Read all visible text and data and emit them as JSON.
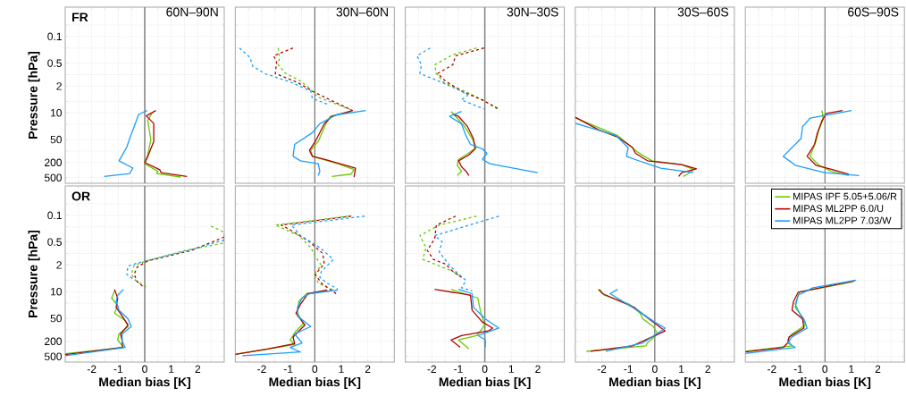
{
  "chart_data": [
    {
      "type": "line",
      "title": "60N–90N",
      "annotations": [
        "FR"
      ],
      "ylabel": "Pressure [hPa]",
      "tick_labels": "y",
      "xlim": [
        -3,
        3
      ],
      "ylim": [
        700,
        0.017
      ],
      "log": "y",
      "grid": true,
      "xticks": [
        {
          "value": -2.5,
          "label": null
        },
        -2,
        {
          "value": -1.5,
          "label": null
        },
        -1,
        {
          "value": -0.5,
          "label": null
        },
        0,
        {
          "value": 0.5,
          "label": null
        },
        1,
        {
          "value": 1.5,
          "label": null
        },
        2,
        {
          "value": 2.5,
          "label": null
        }
      ],
      "yticks": [
        {
          "value": 0.05,
          "label": null
        },
        0.1,
        {
          "value": 0.2,
          "label": null
        },
        0.5,
        {
          "value": 1,
          "label": null
        },
        2,
        {
          "value": 5,
          "label": null
        },
        10,
        {
          "value": 20,
          "label": null
        },
        50,
        {
          "value": 100,
          "label": null
        },
        200,
        500
      ],
      "ref_lines": [
        {
          "axis": "x",
          "value": 0,
          "color": "#808080"
        }
      ],
      "series": [
        {
          "color": "#66cc00",
          "line_style": "solid",
          "x": [
            0.28,
            0.11,
            0.23,
            0.1,
            0.0,
            0.5,
            0.45,
            1.36
          ],
          "values": [
            10,
            16,
            50,
            140,
            215,
            340,
            390,
            480
          ]
        },
        {
          "color": "#b30000",
          "line_style": "solid",
          "x": [
            0.42,
            0.06,
            0.34,
            0.34,
            0.11,
            0.0,
            0.57,
            0.62,
            1.59
          ],
          "values": [
            8.7,
            12,
            19,
            56,
            140,
            200,
            310,
            370,
            465
          ]
        },
        {
          "color": "#1a9eff",
          "line_style": "solid",
          "x": [
            0.09,
            -0.23,
            -0.4,
            -0.57,
            -0.68,
            -0.97,
            -0.45,
            -0.57,
            -1.53
          ],
          "values": [
            8.7,
            11,
            23,
            47,
            80,
            180,
            280,
            390,
            465
          ]
        }
      ]
    },
    {
      "type": "line",
      "title": "30N–60N",
      "tick_labels": false,
      "xlim": [
        -3,
        3
      ],
      "ylim": [
        700,
        0.017
      ],
      "log": "y",
      "grid": true,
      "xticks": [
        {
          "value": -2.5,
          "label": null
        },
        -2,
        {
          "value": -1.5,
          "label": null
        },
        -1,
        {
          "value": -0.5,
          "label": null
        },
        0,
        {
          "value": 0.5,
          "label": null
        },
        1,
        {
          "value": 1.5,
          "label": null
        },
        2,
        {
          "value": 2.5,
          "label": null
        }
      ],
      "yticks": [
        {
          "value": 0.05,
          "label": null
        },
        0.1,
        {
          "value": 0.2,
          "label": null
        },
        0.5,
        {
          "value": 1,
          "label": null
        },
        2,
        {
          "value": 5,
          "label": null
        },
        10,
        {
          "value": 20,
          "label": null
        },
        50,
        {
          "value": 100,
          "label": null
        },
        200,
        500
      ],
      "ref_lines": [
        {
          "axis": "x",
          "value": 0,
          "color": "#808080"
        }
      ],
      "series": [
        {
          "color": "#66cc00",
          "line_style": "dashed",
          "x": [
            -1.38,
            -1.33,
            -1.38,
            -1.1,
            -0.54,
            -0.2,
            0.13,
            0.87,
            1.43
          ],
          "values": [
            0.2,
            0.35,
            0.55,
            0.93,
            1.46,
            2.27,
            3.9,
            6.1,
            8.7
          ]
        },
        {
          "color": "#b30000",
          "line_style": "dashed",
          "x": [
            -0.82,
            -1.55,
            -1.44,
            -1.49,
            -0.65,
            -0.09,
            0.58,
            1.43
          ],
          "values": [
            0.2,
            0.32,
            0.46,
            0.93,
            1.6,
            2.7,
            4.6,
            8.7
          ]
        },
        {
          "color": "#1a9eff",
          "line_style": "dashed",
          "x": [
            -2.84,
            -2.45,
            -2.34,
            -1.89,
            -0.88,
            -0.15,
            -0.09,
            0.53
          ],
          "values": [
            0.2,
            0.35,
            0.6,
            0.93,
            1.6,
            2.7,
            4.2,
            6.1
          ]
        },
        {
          "color": "#66cc00",
          "line_style": "solid",
          "x": [
            1.37,
            0.58,
            0.42,
            0.13,
            -0.15,
            -0.09,
            0.87,
            1.48,
            1.37,
            0.64
          ],
          "values": [
            9.2,
            12.4,
            19.3,
            56,
            96,
            138,
            215,
            307,
            403,
            465
          ]
        },
        {
          "color": "#b30000",
          "line_style": "solid",
          "x": [
            1.43,
            0.64,
            0.36,
            0.02,
            -0.2,
            -0.09,
            0.36,
            1.54,
            1.48
          ],
          "values": [
            8.7,
            12.4,
            19.3,
            56,
            96,
            138,
            165,
            281,
            483
          ]
        },
        {
          "color": "#1a9eff",
          "line_style": "solid",
          "x": [
            1.93,
            0.81,
            0.19,
            -0.09,
            -0.76,
            -0.82,
            -0.54,
            0.13,
            0.19,
            0.13
          ],
          "values": [
            8.7,
            11.3,
            19.3,
            33,
            67,
            138,
            180,
            215,
            337,
            440
          ]
        }
      ]
    },
    {
      "type": "line",
      "title": "30N–30S",
      "tick_labels": false,
      "xlim": [
        -3,
        3
      ],
      "ylim": [
        700,
        0.017
      ],
      "log": "y",
      "grid": true,
      "xticks": [
        {
          "value": -2.5,
          "label": null
        },
        -2,
        {
          "value": -1.5,
          "label": null
        },
        -1,
        {
          "value": -0.5,
          "label": null
        },
        0,
        {
          "value": 0.5,
          "label": null
        },
        1,
        {
          "value": 1.5,
          "label": null
        },
        2,
        {
          "value": 2.5,
          "label": null
        }
      ],
      "yticks": [
        {
          "value": 0.05,
          "label": null
        },
        0.1,
        {
          "value": 0.2,
          "label": null
        },
        0.5,
        {
          "value": 1,
          "label": null
        },
        2,
        {
          "value": 5,
          "label": null
        },
        10,
        {
          "value": 20,
          "label": null
        },
        50,
        {
          "value": 100,
          "label": null
        },
        200,
        500
      ],
      "ref_lines": [
        {
          "axis": "x",
          "value": 0,
          "color": "#808080"
        }
      ],
      "series": [
        {
          "color": "#66cc00",
          "line_style": "dashed",
          "x": [
            -0.31,
            -1.21,
            -1.89,
            -1.83,
            -1.55,
            -0.76,
            -0.09,
            0.47
          ],
          "values": [
            0.2,
            0.3,
            0.55,
            0.93,
            1.6,
            2.7,
            4.6,
            7.9
          ]
        },
        {
          "color": "#b30000",
          "line_style": "dashed",
          "x": [
            -0.03,
            -1.1,
            -1.21,
            -1.78,
            -1.49,
            -0.88,
            -0.09,
            0.53
          ],
          "values": [
            0.2,
            0.32,
            0.55,
            0.93,
            1.46,
            2.7,
            4.6,
            7.9
          ]
        },
        {
          "color": "#1a9eff",
          "line_style": "dashed",
          "x": [
            -2.06,
            -2.56,
            -2.39,
            -2.45,
            -1.61,
            -0.88,
            -0.65,
            -0.88,
            -0.03
          ],
          "values": [
            0.2,
            0.32,
            0.55,
            0.93,
            1.6,
            2.7,
            3.5,
            4.6,
            7.9
          ]
        },
        {
          "color": "#66cc00",
          "line_style": "solid",
          "x": [
            -1.27,
            -1.1,
            -0.76,
            -0.48,
            -0.31,
            -0.71,
            -0.99,
            -1.04,
            -0.88,
            -1.04
          ],
          "values": [
            9.2,
            12.4,
            23,
            47,
            81,
            126,
            165,
            235,
            337,
            440
          ]
        },
        {
          "color": "#b30000",
          "line_style": "solid",
          "x": [
            -1.21,
            -0.99,
            -0.65,
            -0.43,
            -0.37,
            -0.6,
            -0.99,
            -0.88,
            -0.71,
            -0.6
          ],
          "values": [
            10.9,
            12.4,
            23,
            47,
            88,
            126,
            180,
            258,
            337,
            440
          ]
        },
        {
          "color": "#1a9eff",
          "line_style": "solid",
          "x": [
            -0.88,
            -1.33,
            -0.88,
            -0.71,
            -0.54,
            -0.09,
            0.08,
            -0.09,
            0.19,
            1.99
          ],
          "values": [
            9.2,
            12.4,
            19.3,
            39.5,
            67,
            88,
            115,
            165,
            215,
            368
          ]
        }
      ]
    },
    {
      "type": "line",
      "title": "30S–60S",
      "tick_labels": false,
      "xlim": [
        -3,
        3
      ],
      "ylim": [
        700,
        0.017
      ],
      "log": "y",
      "grid": true,
      "xticks": [
        {
          "value": -2.5,
          "label": null
        },
        -2,
        {
          "value": -1.5,
          "label": null
        },
        -1,
        {
          "value": -0.5,
          "label": null
        },
        0,
        {
          "value": 0.5,
          "label": null
        },
        1,
        {
          "value": 1.5,
          "label": null
        },
        2,
        {
          "value": 2.5,
          "label": null
        }
      ],
      "yticks": [
        {
          "value": 0.05,
          "label": null
        },
        0.1,
        {
          "value": 0.2,
          "label": null
        },
        0.5,
        {
          "value": 1,
          "label": null
        },
        2,
        {
          "value": 5,
          "label": null
        },
        10,
        {
          "value": 20,
          "label": null
        },
        50,
        {
          "value": 100,
          "label": null
        },
        200,
        500
      ],
      "ref_lines": [
        {
          "axis": "x",
          "value": 0,
          "color": "#808080"
        }
      ],
      "series": [
        {
          "color": "#66cc00",
          "line_style": "solid",
          "x": [
            -3.0,
            -1.4,
            -0.67,
            -0.11,
            1.01,
            1.46,
            1.24,
            1.07
          ],
          "values": [
            13.5,
            39.5,
            105,
            180,
            227,
            307,
            403,
            465
          ]
        },
        {
          "color": "#b30000",
          "line_style": "solid",
          "x": [
            -3.0,
            -2.13,
            -1.4,
            -0.84,
            -0.73,
            -0.28,
            1.01,
            1.57,
            1.01,
            0.9
          ],
          "values": [
            13,
            27.7,
            43,
            81,
            115,
            180,
            227,
            292,
            368,
            465
          ]
        },
        {
          "color": "#1a9eff",
          "line_style": "solid",
          "x": [
            -3.0,
            -1.46,
            -1.01,
            -1.07,
            -0.45,
            0.22,
            1.46
          ],
          "values": [
            18.7,
            39.5,
            81,
            138,
            197,
            281,
            368
          ]
        }
      ]
    },
    {
      "type": "line",
      "title": "60S–90S",
      "tick_labels": false,
      "xlim": [
        -3,
        3
      ],
      "ylim": [
        700,
        0.017
      ],
      "log": "y",
      "grid": true,
      "xticks": [
        {
          "value": -2.5,
          "label": null
        },
        -2,
        {
          "value": -1.5,
          "label": null
        },
        -1,
        {
          "value": -0.5,
          "label": null
        },
        0,
        {
          "value": 0.5,
          "label": null
        },
        1,
        {
          "value": 1.5,
          "label": null
        },
        2,
        {
          "value": 2.5,
          "label": null
        }
      ],
      "yticks": [
        {
          "value": 0.05,
          "label": null
        },
        0.1,
        {
          "value": 0.2,
          "label": null
        },
        0.5,
        {
          "value": 1,
          "label": null
        },
        2,
        {
          "value": 5,
          "label": null
        },
        10,
        {
          "value": 20,
          "label": null
        },
        50,
        {
          "value": 100,
          "label": null
        },
        200,
        500
      ],
      "ref_lines": [
        {
          "axis": "x",
          "value": 0,
          "color": "#808080"
        }
      ],
      "series": [
        {
          "color": "#66cc00",
          "line_style": "solid",
          "x": [
            -0.11,
            -0.06,
            -0.22,
            -0.34,
            -0.56,
            -0.22,
            0.22,
            0.9
          ],
          "values": [
            8.7,
            14.6,
            27.7,
            56,
            138,
            235,
            337,
            440
          ]
        },
        {
          "color": "#b30000",
          "line_style": "solid",
          "x": [
            0.67,
            0.06,
            -0.11,
            -0.28,
            -0.39,
            -0.67,
            -0.34,
            0.28,
            0.9
          ],
          "values": [
            8.7,
            10.3,
            16,
            33,
            67,
            138,
            235,
            307,
            403
          ]
        },
        {
          "color": "#1a9eff",
          "line_style": "solid",
          "x": [
            1.01,
            -0.56,
            -0.84,
            -0.9,
            -1.57,
            -1.12,
            0.0,
            1.29
          ],
          "values": [
            8.7,
            13.8,
            23,
            47,
            138,
            235,
            368,
            440
          ]
        }
      ]
    },
    {
      "type": "line",
      "annotations": [
        "OR"
      ],
      "ylabel": "Pressure [hPa]",
      "xlabel": "Median bias [K]",
      "xlim": [
        -3,
        3
      ],
      "ylim": [
        700,
        0.017
      ],
      "log": "y",
      "grid": true,
      "xticks": [
        {
          "value": -2.5,
          "label": null
        },
        -2,
        {
          "value": -1.5,
          "label": null
        },
        -1,
        {
          "value": -0.5,
          "label": null
        },
        0,
        {
          "value": 0.5,
          "label": null
        },
        1,
        {
          "value": 1.5,
          "label": null
        },
        2,
        {
          "value": 2.5,
          "label": null
        }
      ],
      "yticks": [
        {
          "value": 0.05,
          "label": null
        },
        0.1,
        {
          "value": 0.2,
          "label": null
        },
        0.5,
        {
          "value": 1,
          "label": null
        },
        2,
        {
          "value": 5,
          "label": null
        },
        10,
        {
          "value": 20,
          "label": null
        },
        50,
        {
          "value": 100,
          "label": null
        },
        200,
        500
      ],
      "ref_lines": [
        {
          "axis": "x",
          "value": 0,
          "color": "#808080"
        }
      ],
      "series": [
        {
          "color": "#66cc00",
          "line_style": "dashed",
          "x": [
            2.5,
            3.0,
            3.0,
            1.53,
            0.06,
            -0.4,
            -0.51,
            -0.34,
            0.11
          ],
          "values": [
            0.19,
            0.28,
            0.53,
            0.83,
            1.57,
            2.05,
            3.5,
            5.1,
            7.9
          ]
        },
        {
          "color": "#b30000",
          "line_style": "dashed",
          "x": [
            3.0,
            1.76,
            0.11,
            -0.28,
            -0.4,
            -0.28,
            0.0
          ],
          "values": [
            0.37,
            0.83,
            1.57,
            2.25,
            3.5,
            5.5,
            7.9
          ]
        },
        {
          "color": "#1a9eff",
          "line_style": "dashed",
          "x": [
            3.0,
            1.65,
            -0.17,
            -0.63,
            -0.68,
            -0.45,
            -0.34
          ],
          "values": [
            0.44,
            0.83,
            1.7,
            2.13,
            3.5,
            4.6,
            5.1
          ]
        },
        {
          "color": "#66cc00",
          "line_style": "solid",
          "x": [
            -1.14,
            -1.25,
            -1.02,
            -1.14,
            -0.74,
            -0.63,
            -0.97,
            -1.02,
            -0.8,
            -3.0
          ],
          "values": [
            9.5,
            14.8,
            23.3,
            36.5,
            57,
            82,
            128,
            184,
            288,
            420
          ]
        },
        {
          "color": "#b30000",
          "line_style": "solid",
          "x": [
            -1.14,
            -1.02,
            -1.08,
            -0.85,
            -0.63,
            -0.91,
            -0.85,
            -0.85,
            -3.0
          ],
          "values": [
            8.7,
            14.8,
            25.5,
            43.7,
            75,
            128,
            201,
            288,
            445
          ]
        },
        {
          "color": "#1a9eff",
          "line_style": "solid",
          "x": [
            -0.8,
            -1.02,
            -1.08,
            -0.97,
            -0.63,
            -0.51,
            -0.85,
            -0.85,
            -0.74,
            -3.0
          ],
          "values": [
            8.7,
            12.4,
            17.8,
            30.5,
            52,
            82,
            128,
            201,
            288,
            475
          ]
        }
      ]
    },
    {
      "type": "line",
      "xlabel": "Median bias [K]",
      "tick_labels": "x",
      "xlim": [
        -3,
        3
      ],
      "ylim": [
        700,
        0.017
      ],
      "log": "y",
      "grid": true,
      "xticks": [
        {
          "value": -2.5,
          "label": null
        },
        -2,
        {
          "value": -1.5,
          "label": null
        },
        -1,
        {
          "value": -0.5,
          "label": null
        },
        0,
        {
          "value": 0.5,
          "label": null
        },
        1,
        {
          "value": 1.5,
          "label": null
        },
        2,
        {
          "value": 2.5,
          "label": null
        }
      ],
      "yticks": [
        {
          "value": 0.05,
          "label": null
        },
        0.1,
        {
          "value": 0.2,
          "label": null
        },
        0.5,
        {
          "value": 1,
          "label": null
        },
        2,
        {
          "value": 5,
          "label": null
        },
        10,
        {
          "value": 20,
          "label": null
        },
        50,
        {
          "value": 100,
          "label": null
        },
        200,
        500
      ],
      "ref_lines": [
        {
          "axis": "x",
          "value": 0,
          "color": "#808080"
        }
      ],
      "series": [
        {
          "color": "#66cc00",
          "line_style": "dashed",
          "x": [
            1.26,
            -1.49,
            -0.6,
            -0.15,
            0.02,
            0.25,
            -0.03,
            0.13,
            0.7
          ],
          "values": [
            0.105,
            0.18,
            0.34,
            0.7,
            1.2,
            2.05,
            3.5,
            6.0,
            9.0
          ]
        },
        {
          "color": "#b30000",
          "line_style": "dashed",
          "x": [
            1.37,
            -1.27,
            -0.93,
            -0.2,
            0.3,
            0.36,
            0.02,
            0.25,
            0.81
          ],
          "values": [
            0.105,
            0.18,
            0.24,
            0.49,
            1.0,
            1.88,
            3.5,
            6.0,
            11.3
          ]
        },
        {
          "color": "#1a9eff",
          "line_style": "dashed",
          "x": [
            1.88,
            -0.88,
            -0.54,
            0.19,
            0.7,
            0.25,
            0.19,
            0.47,
            0.87
          ],
          "values": [
            0.105,
            0.18,
            0.34,
            0.7,
            1.43,
            2.94,
            4.2,
            6.0,
            8.6
          ]
        },
        {
          "color": "#66cc00",
          "line_style": "solid",
          "x": [
            0.58,
            -0.31,
            -0.6,
            -0.65,
            -0.43,
            -0.71,
            -0.93,
            -0.76,
            -3.0
          ],
          "values": [
            9.5,
            11.3,
            17.8,
            36.5,
            69,
            107,
            184,
            241,
            437
          ]
        },
        {
          "color": "#b30000",
          "line_style": "solid",
          "x": [
            0.47,
            -0.26,
            -0.54,
            -0.71,
            -0.37,
            -0.6,
            -0.82,
            -0.76,
            -1.78,
            -3.0
          ],
          "values": [
            9.1,
            11.3,
            21.3,
            36.5,
            75,
            107,
            154,
            229,
            317,
            437
          ]
        },
        {
          "color": "#1a9eff",
          "line_style": "solid",
          "x": [
            0.87,
            -0.2,
            -0.48,
            -0.65,
            -0.65,
            -0.15,
            -0.76,
            -0.48,
            -0.93,
            -0.54,
            -2.73
          ],
          "values": [
            9.0,
            11.3,
            14.8,
            25.5,
            43.7,
            82,
            128,
            220,
            288,
            381,
            479
          ]
        }
      ]
    },
    {
      "type": "line",
      "xlabel": "Median bias [K]",
      "tick_labels": "x",
      "xlim": [
        -3,
        3
      ],
      "ylim": [
        700,
        0.017
      ],
      "log": "y",
      "grid": true,
      "xticks": [
        {
          "value": -2.5,
          "label": null
        },
        -2,
        {
          "value": -1.5,
          "label": null
        },
        -1,
        {
          "value": -0.5,
          "label": null
        },
        0,
        {
          "value": 0.5,
          "label": null
        },
        1,
        {
          "value": 1.5,
          "label": null
        },
        2,
        {
          "value": 2.5,
          "label": null
        }
      ],
      "yticks": [
        {
          "value": 0.05,
          "label": null
        },
        0.1,
        {
          "value": 0.2,
          "label": null
        },
        0.5,
        {
          "value": 1,
          "label": null
        },
        2,
        {
          "value": 5,
          "label": null
        },
        10,
        {
          "value": 20,
          "label": null
        },
        50,
        {
          "value": 100,
          "label": null
        },
        200,
        500
      ],
      "ref_lines": [
        {
          "axis": "x",
          "value": 0,
          "color": "#808080"
        }
      ],
      "series": [
        {
          "color": "#66cc00",
          "line_style": "dashed",
          "x": [
            -0.31,
            -1.72,
            -2.45,
            -2.22,
            -2.34,
            -1.89,
            -1.21,
            -0.88
          ],
          "values": [
            0.105,
            0.18,
            0.34,
            0.7,
            1.43,
            1.88,
            2.94,
            4.2
          ]
        },
        {
          "color": "#b30000",
          "line_style": "dashed",
          "x": [
            -1.1,
            -1.83,
            -1.89,
            -2.17,
            -1.94,
            -1.49,
            -1.21,
            -0.88
          ],
          "values": [
            0.105,
            0.18,
            0.41,
            0.83,
            1.43,
            1.88,
            2.94,
            4.2
          ]
        },
        {
          "color": "#1a9eff",
          "line_style": "dashed",
          "x": [
            0.53,
            -1.89,
            -1.61,
            -1.72,
            -1.33,
            -1.1,
            -0.71,
            -0.88,
            -0.48
          ],
          "values": [
            0.105,
            0.34,
            0.49,
            0.91,
            2.05,
            2.94,
            5.1,
            7.9,
            9.5
          ]
        },
        {
          "color": "#66cc00",
          "line_style": "solid",
          "x": [
            -1.27,
            -0.26,
            -0.15,
            0.0,
            -0.31,
            -0.99,
            -0.6
          ],
          "values": [
            8.7,
            14.8,
            36.5,
            75,
            141,
            184,
            317
          ]
        },
        {
          "color": "#b30000",
          "line_style": "solid",
          "x": [
            -1.89,
            -0.54,
            -0.48,
            -0.09,
            0.3,
            0.13,
            -0.88,
            -1.27,
            -0.93
          ],
          "values": [
            8.7,
            12.4,
            30.5,
            63,
            90,
            107,
            141,
            184,
            288
          ]
        },
        {
          "color": "#1a9eff",
          "line_style": "solid",
          "x": [
            -0.99,
            -0.48,
            -0.43,
            0.02,
            0.53,
            -0.26,
            0.02,
            0.02
          ],
          "values": [
            8.7,
            11.3,
            25.5,
            52,
            90,
            141,
            184,
            288
          ]
        }
      ]
    },
    {
      "type": "line",
      "xlabel": "Median bias [K]",
      "tick_labels": "x",
      "xlim": [
        -3,
        3
      ],
      "ylim": [
        700,
        0.017
      ],
      "log": "y",
      "grid": true,
      "xticks": [
        {
          "value": -2.5,
          "label": null
        },
        -2,
        {
          "value": -1.5,
          "label": null
        },
        -1,
        {
          "value": -0.5,
          "label": null
        },
        0,
        {
          "value": 0.5,
          "label": null
        },
        1,
        {
          "value": 1.5,
          "label": null
        },
        2,
        {
          "value": 2.5,
          "label": null
        }
      ],
      "yticks": [
        {
          "value": 0.05,
          "label": null
        },
        0.1,
        {
          "value": 0.2,
          "label": null
        },
        0.5,
        {
          "value": 1,
          "label": null
        },
        2,
        {
          "value": 5,
          "label": null
        },
        10,
        {
          "value": 20,
          "label": null
        },
        50,
        {
          "value": 100,
          "label": null
        },
        200,
        500
      ],
      "ref_lines": [
        {
          "axis": "x",
          "value": 0,
          "color": "#808080"
        }
      ],
      "series": [
        {
          "color": "#66cc00",
          "line_style": "solid",
          "x": [
            -2.08,
            -1.91,
            -0.96,
            -0.56,
            -0.45,
            -0.06,
            0.11,
            -0.28,
            -0.34,
            -2.58
          ],
          "values": [
            8.7,
            12.4,
            21.3,
            36.5,
            52,
            82,
            128,
            220,
            263,
            366
          ]
        },
        {
          "color": "#b30000",
          "line_style": "solid",
          "x": [
            -2.13,
            -1.97,
            -0.79,
            -0.22,
            0.39,
            -0.11,
            -0.84,
            -2.42
          ],
          "values": [
            8.7,
            11.3,
            25.5,
            52,
            107,
            154,
            263,
            366
          ]
        },
        {
          "color": "#1a9eff",
          "line_style": "solid",
          "x": [
            -1.4,
            -1.69,
            -0.67,
            0.0,
            0.39,
            -0.11,
            -0.45,
            -1.85
          ],
          "values": [
            8.7,
            11.3,
            30.5,
            63,
            90,
            154,
            220,
            366
          ]
        }
      ]
    },
    {
      "type": "line",
      "xlabel": "Median bias [K]",
      "tick_labels": "x",
      "legend": "top right",
      "xlim": [
        -3,
        3
      ],
      "ylim": [
        700,
        0.017
      ],
      "log": "y",
      "grid": true,
      "xticks": [
        {
          "value": -2.5,
          "label": null
        },
        -2,
        {
          "value": -1.5,
          "label": null
        },
        -1,
        {
          "value": -0.5,
          "label": null
        },
        0,
        {
          "value": 0.5,
          "label": null
        },
        1,
        {
          "value": 1.5,
          "label": null
        },
        2,
        {
          "value": 2.5,
          "label": null
        }
      ],
      "yticks": [
        {
          "value": 0.05,
          "label": null
        },
        0.1,
        {
          "value": 0.2,
          "label": null
        },
        0.5,
        {
          "value": 1,
          "label": null
        },
        2,
        {
          "value": 5,
          "label": null
        },
        10,
        {
          "value": 20,
          "label": null
        },
        50,
        {
          "value": 100,
          "label": null
        },
        200,
        500
      ],
      "ref_lines": [
        {
          "axis": "x",
          "value": 0,
          "color": "#808080"
        }
      ],
      "series": [
        {
          "name": "MIPAS IPF 5.05+5.06/R",
          "color": "#66cc00",
          "line_style": "solid",
          "x": [
            1.07,
            -0.96,
            -1.12,
            -0.9,
            -0.73,
            -1.24,
            -1.4,
            -1.24,
            -3.0
          ],
          "values": [
            5.5,
            10.4,
            21,
            43.7,
            75,
            128,
            184,
            263,
            366
          ]
        },
        {
          "name": "MIPAS ML2PP 6.0/U",
          "color": "#b30000",
          "line_style": "solid",
          "x": [
            1.12,
            -1.01,
            -1.18,
            -1.24,
            -0.84,
            -0.79,
            -1.35,
            -1.4,
            -1.57,
            -3.0
          ],
          "values": [
            5.2,
            10.4,
            17.8,
            30.5,
            52,
            90,
            154,
            220,
            288,
            381
          ]
        },
        {
          "name": "MIPAS ML2PP 7.03/W",
          "color": "#1a9eff",
          "line_style": "solid",
          "x": [
            1.18,
            -0.45,
            -1.01,
            -1.12,
            -0.79,
            -0.67,
            -1.24,
            -1.4,
            -1.12,
            -3.0
          ],
          "values": [
            5.0,
            7.9,
            12.4,
            25.5,
            52,
            90,
            154,
            220,
            288,
            417
          ]
        }
      ]
    }
  ]
}
